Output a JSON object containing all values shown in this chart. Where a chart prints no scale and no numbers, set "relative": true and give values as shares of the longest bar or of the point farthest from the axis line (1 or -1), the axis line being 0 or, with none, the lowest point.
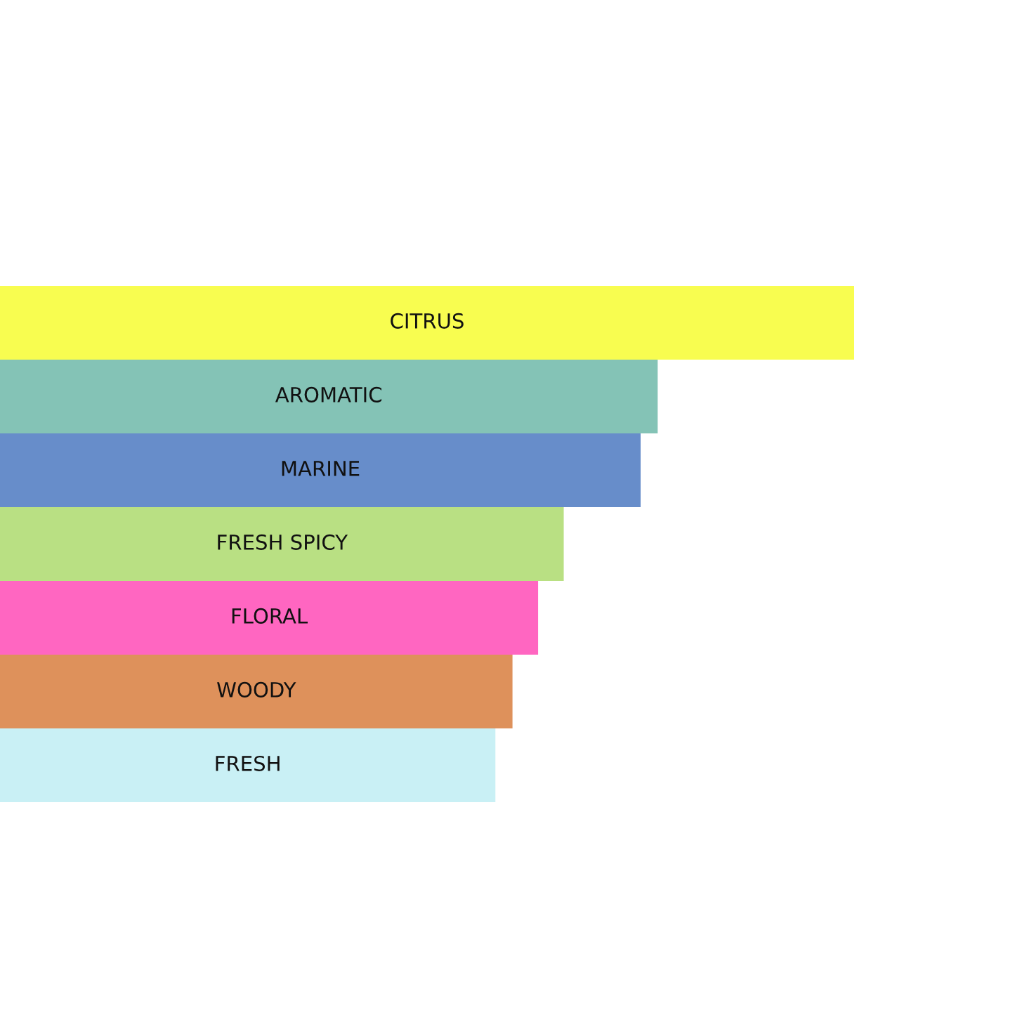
{
  "chart_data": {
    "type": "bar",
    "orientation": "horizontal",
    "relative": true,
    "categories": [
      "CITRUS",
      "AROMATIC",
      "MARINE",
      "FRESH SPICY",
      "FLORAL",
      "WOODY",
      "FRESH"
    ],
    "values": [
      1,
      0.77,
      0.75,
      0.66,
      0.63,
      0.6,
      0.58
    ],
    "colors": [
      "#f8fd50",
      "#84c3b6",
      "#678dca",
      "#b9e083",
      "#ff66c1",
      "#de915b",
      "#c9f0f5"
    ]
  }
}
